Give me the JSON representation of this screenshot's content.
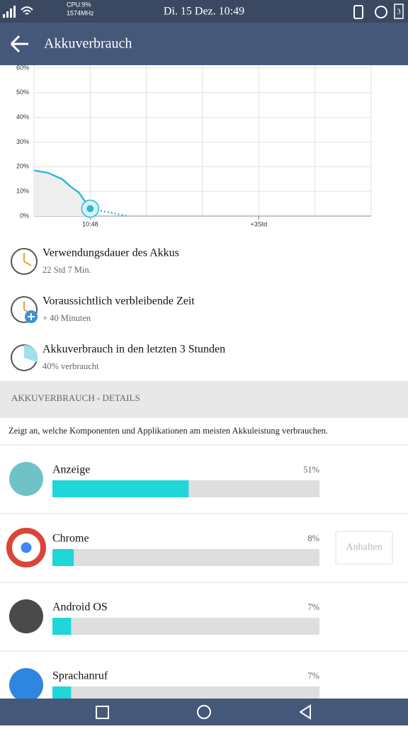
{
  "status_bar": {
    "cpu": "CPU:9%",
    "freq": "1574MHz",
    "datetime": "Di. 15 Dez. 10:49",
    "battery": "3"
  },
  "header": {
    "title": "Akkuverbrauch"
  },
  "chart": {
    "type": "line",
    "xlim": [
      -1,
      5
    ],
    "ylim": [
      0,
      60
    ],
    "yticks": [
      {
        "value": 0,
        "label": "0%"
      },
      {
        "value": 10,
        "label": "10%"
      },
      {
        "value": 20,
        "label": "20%"
      },
      {
        "value": 30,
        "label": "30%"
      },
      {
        "value": 40,
        "label": "40%"
      },
      {
        "value": 50,
        "label": "50%"
      },
      {
        "value": 60,
        "label": "60%"
      }
    ],
    "xticks": [
      {
        "value": 0,
        "label": "10:48"
      },
      {
        "value": 3,
        "label": "+3Std"
      }
    ],
    "xgrid": [
      -1,
      0,
      1,
      2,
      3,
      4,
      5
    ],
    "series": [
      {
        "style": "solid",
        "color": "#2fb8d6",
        "x": [
          -1,
          -0.75,
          -0.5,
          -0.35,
          -0.2,
          0
        ],
        "values": [
          18.5,
          17.5,
          15,
          12,
          9.5,
          3
        ]
      },
      {
        "style": "dotted",
        "color": "#2fb8d6",
        "x": [
          0,
          0.67
        ],
        "values": [
          3,
          0
        ]
      }
    ]
  },
  "info": [
    {
      "title": "Verwendungsdauer des Akkus",
      "detail": "22 Std 7 Min."
    },
    {
      "title": "Voraussichtlich verbleibende Zeit",
      "detail": "+ 40 Minuten"
    },
    {
      "title": "Akkuverbrauch in den letzten 3 Stunden",
      "detail": "40% verbraucht"
    }
  ],
  "details": {
    "heading": "AKKUVERBRAUCH - DETAILS",
    "description": "Zeigt an, welche Komponenten und Applikationen am meisten Akkuleistung verbrauchen."
  },
  "apps": [
    {
      "name": "Anzeige",
      "value": 51,
      "label": "51%"
    },
    {
      "name": "Chrome",
      "value": 8,
      "label": "8%",
      "action": "Anhalten"
    },
    {
      "name": "Android OS",
      "value": 7,
      "label": "7%"
    },
    {
      "name": "Sprachanruf",
      "value": 7,
      "label": "7%"
    }
  ]
}
